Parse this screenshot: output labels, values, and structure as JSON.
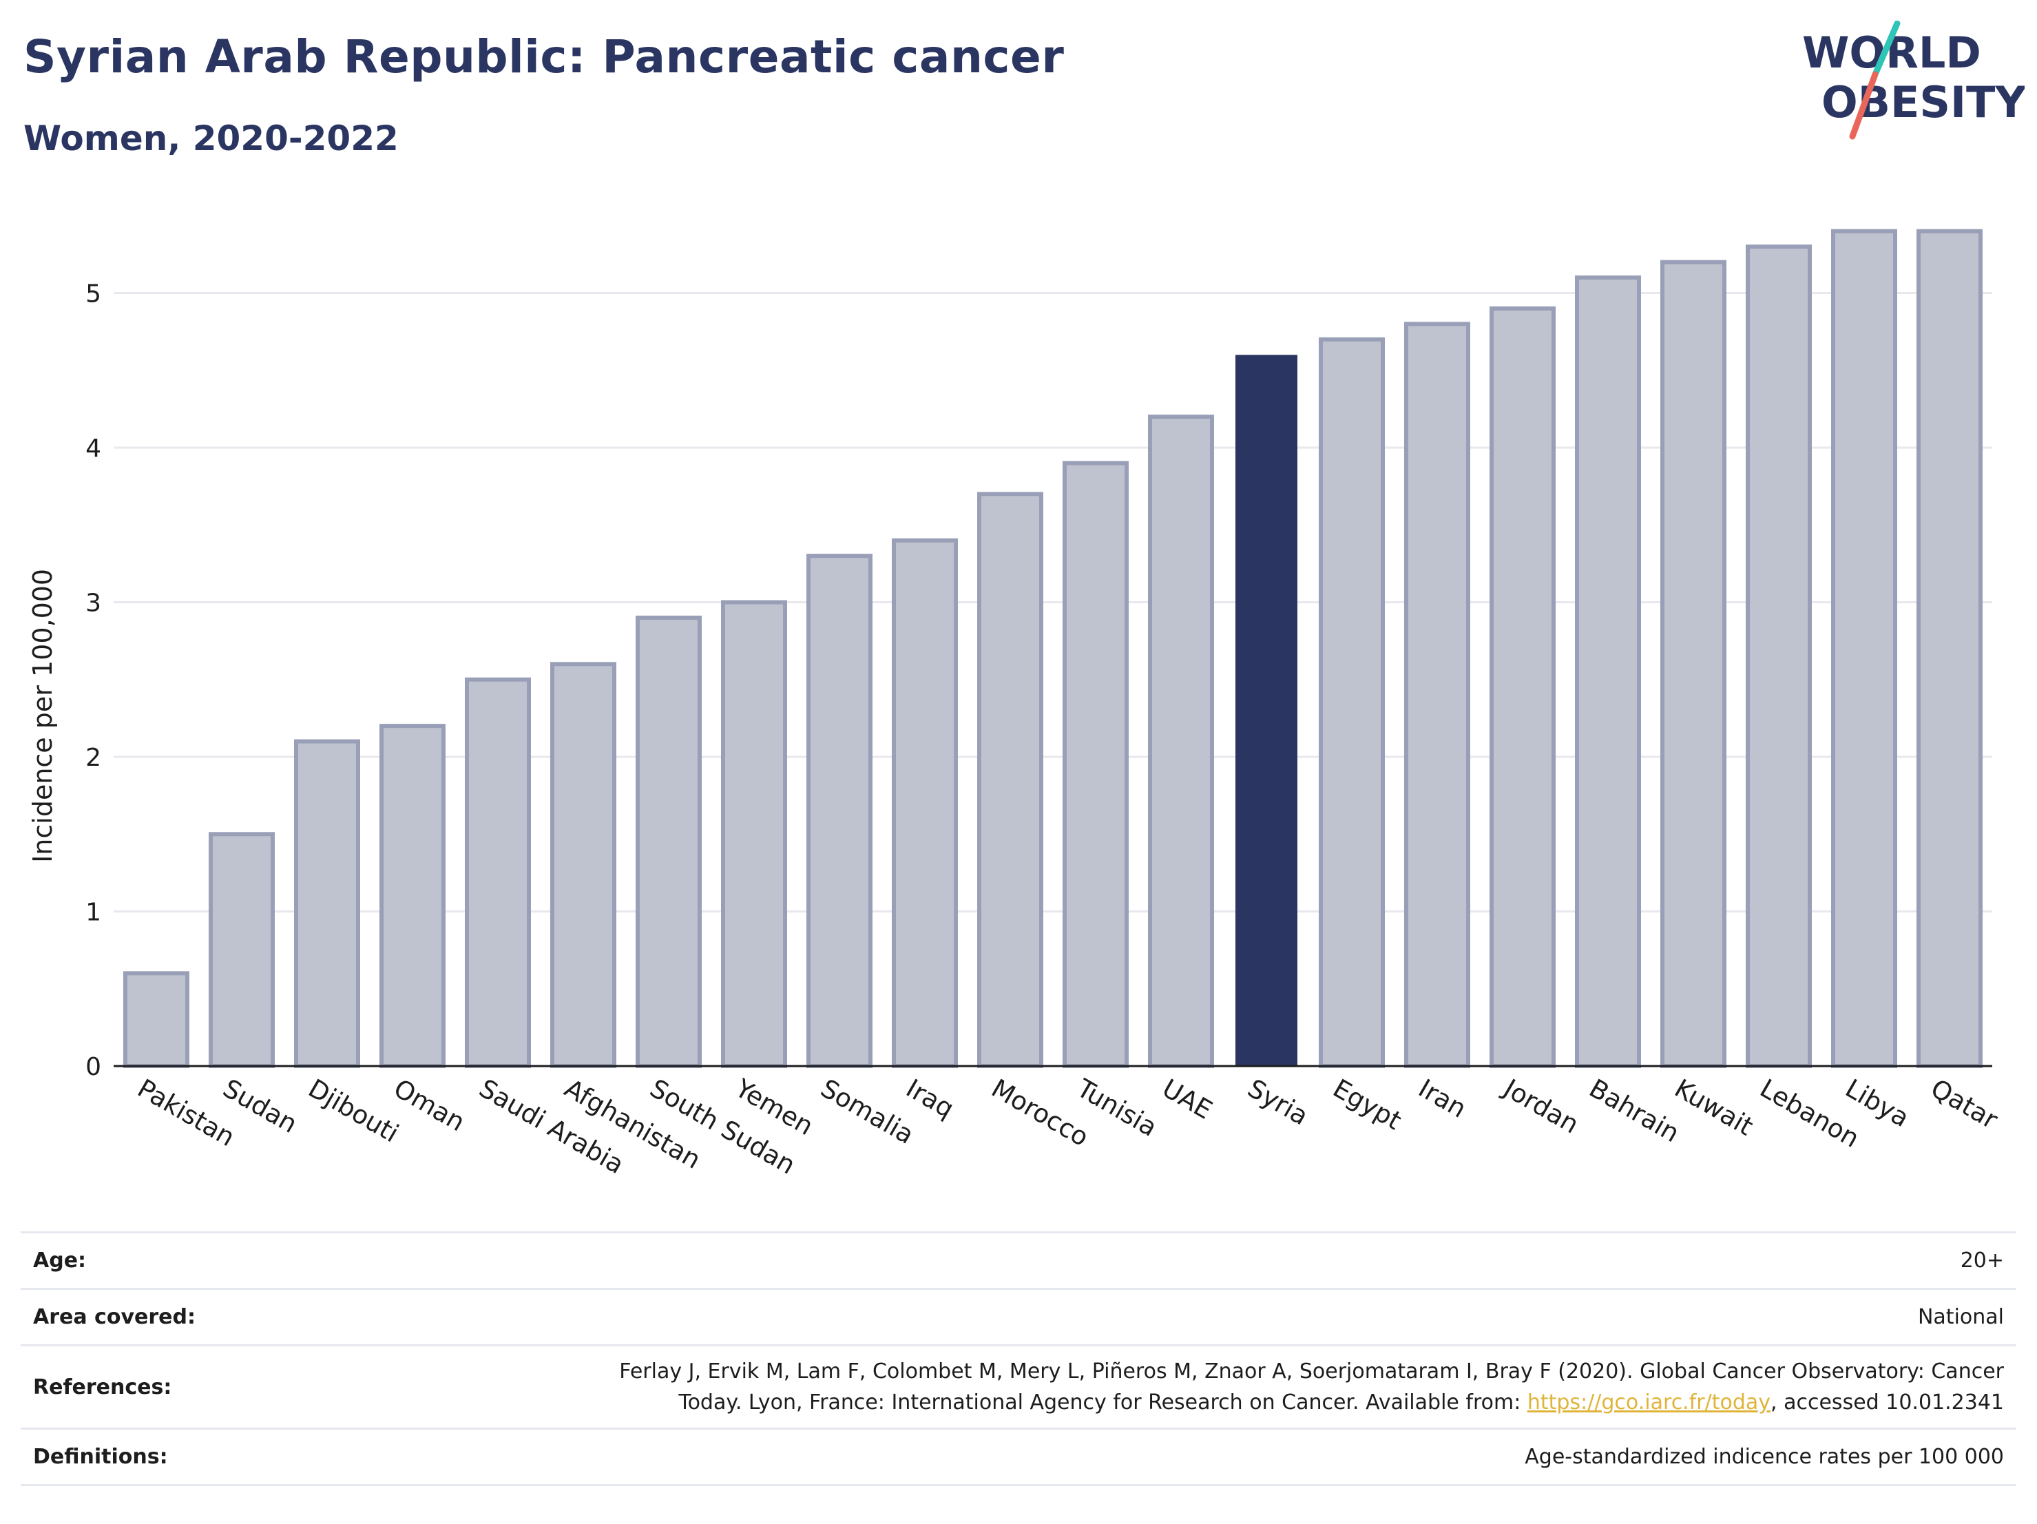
{
  "header": {
    "title": "Syrian Arab Republic: Pancreatic cancer",
    "subtitle": "Women, 2020-2022"
  },
  "logo": {
    "line1": "WORLD",
    "line2": "OBESITY",
    "colors": {
      "text": "#2b3562",
      "slash_top": "#2ec4b6",
      "slash_bottom": "#e8675a"
    }
  },
  "chart_data": {
    "type": "bar",
    "ylabel": "Incidence per 100,000",
    "xlabel": "",
    "ylim": [
      0,
      5.6
    ],
    "yticks": [
      0,
      1,
      2,
      3,
      4,
      5
    ],
    "grid": true,
    "categories": [
      "Pakistan",
      "Sudan",
      "Djibouti",
      "Oman",
      "Saudi Arabia",
      "Afghanistan",
      "South Sudan",
      "Yemen",
      "Somalia",
      "Iraq",
      "Morocco",
      "Tunisia",
      "UAE",
      "Syria",
      "Egypt",
      "Iran",
      "Jordan",
      "Bahrain",
      "Kuwait",
      "Lebanon",
      "Libya",
      "Qatar"
    ],
    "values": [
      0.6,
      1.5,
      2.1,
      2.2,
      2.5,
      2.6,
      2.9,
      3.0,
      3.3,
      3.4,
      3.7,
      3.9,
      4.2,
      4.6,
      4.7,
      4.8,
      4.9,
      5.1,
      5.2,
      5.3,
      5.4,
      5.4
    ],
    "highlight": "Syria",
    "colors": {
      "bar_fill": "#bfc2cf",
      "bar_stroke": "#9a9fb8",
      "highlight_fill": "#2b3562",
      "grid": "#e8e8ee",
      "axis": "#1d1d1d"
    }
  },
  "meta": {
    "age_label": "Age:",
    "age_value": "20+",
    "area_label": "Area covered:",
    "area_value": "National",
    "references_label": "References:",
    "references_line1": "Ferlay J, Ervik M, Lam F, Colombet M, Mery L, Piñeros M, Znaor A, Soerjomataram I, Bray F (2020). Global Cancer Observatory: Cancer",
    "references_line2_pre": "Today. Lyon, France: International Agency for Research on Cancer. Available from: ",
    "references_link": "https://gco.iarc.fr/today",
    "references_line2_post": ", accessed 10.01.2341",
    "definitions_label": "Definitions:",
    "definitions_value": "Age-standardized indicence rates per 100 000"
  }
}
